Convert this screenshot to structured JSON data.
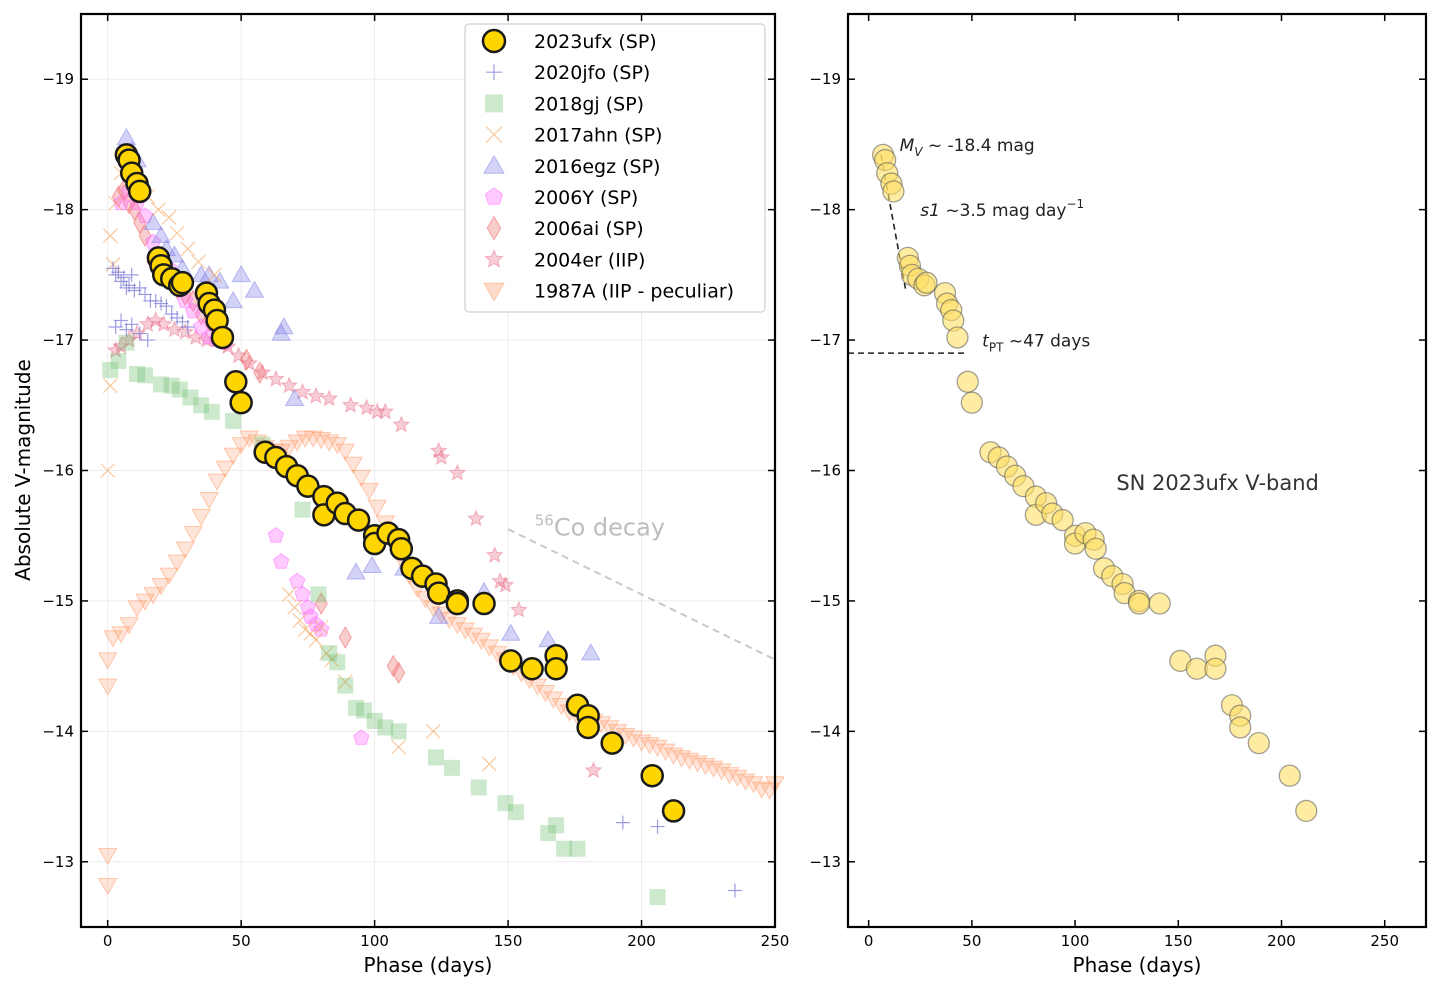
{
  "chart_data": [
    {
      "type": "scatter",
      "panel": "left",
      "xlabel": "Phase (days)",
      "ylabel": "Absolute V-magnitude",
      "xlim": [
        -10,
        250
      ],
      "ylim": [
        -19.5,
        -12.5
      ],
      "y_inverted": true,
      "grid": true,
      "xticks": [
        "0",
        "50",
        "100",
        "150",
        "200",
        "250"
      ],
      "yticks": [
        "−19",
        "−18",
        "−17",
        "−16",
        "−15",
        "−14",
        "−13"
      ],
      "legend_position": "top-right",
      "annotations": [
        {
          "text_sup": "56",
          "text": "Co decay",
          "line_from": [
            150,
            -15.55
          ],
          "line_to": [
            250,
            -14.55
          ]
        }
      ],
      "series": [
        {
          "name": "2023ufx (SP)",
          "marker": "circle",
          "color": "#FFD500",
          "edge": "#1a1a1a",
          "x": [
            7,
            8,
            9,
            11,
            12,
            19,
            20,
            21,
            24,
            27,
            28,
            37,
            38,
            40,
            41,
            43,
            48,
            50,
            59,
            63,
            67,
            71,
            75,
            81,
            81,
            86,
            89,
            94,
            100,
            100,
            105,
            109,
            110,
            114,
            118,
            123,
            124,
            131,
            131,
            141,
            151,
            159,
            168,
            168,
            176,
            180,
            180,
            189,
            204,
            212
          ],
          "y": [
            -18.42,
            -18.38,
            -18.28,
            -18.2,
            -18.14,
            -17.63,
            -17.57,
            -17.5,
            -17.47,
            -17.42,
            -17.44,
            -17.36,
            -17.28,
            -17.23,
            -17.15,
            -17.02,
            -16.68,
            -16.52,
            -16.14,
            -16.1,
            -16.03,
            -15.96,
            -15.88,
            -15.8,
            -15.66,
            -15.75,
            -15.67,
            -15.62,
            -15.5,
            -15.44,
            -15.52,
            -15.47,
            -15.4,
            -15.25,
            -15.19,
            -15.13,
            -15.06,
            -15.0,
            -14.98,
            -14.98,
            -14.54,
            -14.48,
            -14.58,
            -14.48,
            -14.2,
            -14.12,
            -14.03,
            -13.91,
            -13.66,
            -13.39
          ]
        },
        {
          "name": "2020jfo (SP)",
          "marker": "plus",
          "color": "#7b7bd6",
          "x": [
            2,
            3,
            4,
            5,
            6,
            7,
            8,
            9,
            10,
            12,
            14,
            16,
            18,
            20,
            22,
            24,
            26,
            28,
            30,
            3,
            5,
            7,
            9,
            12,
            15,
            193,
            206,
            235
          ],
          "y": [
            -17.55,
            -17.5,
            -17.52,
            -17.45,
            -17.48,
            -17.4,
            -17.42,
            -17.5,
            -17.38,
            -17.4,
            -17.35,
            -17.3,
            -17.3,
            -17.28,
            -17.26,
            -17.2,
            -17.17,
            -17.14,
            -17.1,
            -17.1,
            -17.15,
            -17.08,
            -17.12,
            -17.05,
            -17.0,
            -13.3,
            -13.27,
            -12.78
          ]
        },
        {
          "name": "2018gj (SP)",
          "marker": "square",
          "color": "#6fbf6f",
          "x": [
            1,
            4,
            7,
            11,
            14,
            20,
            24,
            27,
            31,
            35,
            39,
            47,
            58,
            73,
            79,
            83,
            86,
            89,
            93,
            96,
            100,
            104,
            109,
            123,
            129,
            139,
            149,
            153,
            165,
            168,
            171,
            176,
            206
          ],
          "y": [
            -16.77,
            -16.84,
            -16.98,
            -16.74,
            -16.73,
            -16.66,
            -16.65,
            -16.62,
            -16.56,
            -16.5,
            -16.45,
            -16.38,
            -16.2,
            -15.7,
            -15.05,
            -14.6,
            -14.53,
            -14.35,
            -14.18,
            -14.16,
            -14.08,
            -14.03,
            -14.0,
            -13.8,
            -13.72,
            -13.57,
            -13.45,
            -13.38,
            -13.22,
            -13.28,
            -13.1,
            -13.1,
            -12.73
          ]
        },
        {
          "name": "2017ahn (SP)",
          "marker": "x",
          "color": "#f3a35a",
          "x": [
            0,
            1,
            2,
            3,
            5,
            8,
            11,
            15,
            19,
            23,
            26,
            30,
            34,
            40,
            1,
            68,
            70,
            72,
            74,
            76,
            78,
            80,
            82,
            84,
            89,
            109,
            122,
            143
          ],
          "y": [
            -16.0,
            -16.65,
            -17.58,
            -18.05,
            -18.28,
            -18.22,
            -18.15,
            -18.1,
            -18.0,
            -17.94,
            -17.82,
            -17.7,
            -17.6,
            -17.5,
            -17.8,
            -15.05,
            -14.95,
            -14.85,
            -14.78,
            -14.75,
            -14.7,
            -14.8,
            -14.6,
            -14.55,
            -14.38,
            -13.88,
            -14.0,
            -13.75
          ]
        },
        {
          "name": "2016egz (SP)",
          "marker": "triangle-up",
          "color": "#8080e8",
          "x": [
            7,
            9,
            11,
            13,
            17,
            20,
            22,
            25,
            28,
            35,
            38,
            42,
            47,
            50,
            55,
            65,
            66,
            70,
            93,
            99,
            111,
            124,
            141,
            151,
            165,
            181
          ],
          "y": [
            -18.55,
            -18.45,
            -18.38,
            -18.2,
            -17.9,
            -17.8,
            -17.7,
            -17.65,
            -17.55,
            -17.5,
            -17.5,
            -17.45,
            -17.3,
            -17.5,
            -17.38,
            -17.05,
            -17.1,
            -16.55,
            -15.22,
            -15.27,
            -15.25,
            -14.88,
            -15.07,
            -14.75,
            -14.7,
            -14.6
          ]
        },
        {
          "name": "2006Y (SP)",
          "marker": "pentagon",
          "color": "#ff66ff",
          "x": [
            5,
            8,
            11,
            14,
            17,
            20,
            23,
            26,
            29,
            32,
            35,
            38,
            41,
            44,
            63,
            65,
            71,
            73,
            75,
            76,
            78,
            80,
            95
          ],
          "y": [
            -18.05,
            -18.15,
            -18.05,
            -17.95,
            -17.75,
            -17.65,
            -17.55,
            -17.45,
            -17.3,
            -17.22,
            -17.1,
            -17.02,
            -17.0,
            -16.98,
            -15.5,
            -15.3,
            -15.15,
            -15.05,
            -14.95,
            -14.88,
            -14.82,
            -14.78,
            -13.95
          ]
        },
        {
          "name": "2006ai (SP)",
          "marker": "diamond",
          "color": "#f07070",
          "x": [
            4,
            6,
            8,
            10,
            12,
            14,
            17,
            20,
            23,
            26,
            29,
            32,
            35,
            38,
            41,
            44,
            52,
            57,
            80,
            89,
            107,
            109
          ],
          "y": [
            -18.1,
            -18.15,
            -18.05,
            -18.0,
            -17.9,
            -17.8,
            -17.6,
            -17.55,
            -17.5,
            -17.4,
            -17.35,
            -17.3,
            -17.2,
            -17.15,
            -17.05,
            -17.0,
            -16.85,
            -16.75,
            -14.98,
            -14.72,
            -14.5,
            -14.45
          ]
        },
        {
          "name": "2004er (IIP)",
          "marker": "star",
          "color": "#e8708a",
          "x": [
            3,
            5,
            8,
            11,
            15,
            18,
            21,
            25,
            29,
            33,
            37,
            41,
            45,
            49,
            53,
            58,
            63,
            68,
            73,
            78,
            83,
            91,
            97,
            101,
            104,
            110,
            124,
            125,
            131,
            138,
            145,
            147,
            149,
            154,
            182
          ],
          "y": [
            -16.92,
            -16.95,
            -17.0,
            -17.05,
            -17.12,
            -17.15,
            -17.12,
            -17.08,
            -17.06,
            -17.02,
            -17.0,
            -17.0,
            -16.95,
            -16.88,
            -16.82,
            -16.75,
            -16.7,
            -16.65,
            -16.6,
            -16.57,
            -16.55,
            -16.5,
            -16.48,
            -16.45,
            -16.45,
            -16.35,
            -16.15,
            -16.1,
            -15.98,
            -15.63,
            -15.35,
            -15.15,
            -15.12,
            -14.93,
            -13.7
          ]
        }
      ],
      "series_1987A": {
        "name": "1987A (IIP - peculiar)",
        "marker": "triangle-down",
        "color": "#ff9966",
        "x": [
          0,
          0,
          0,
          0,
          2,
          5,
          8,
          11,
          14,
          17,
          20,
          23,
          26,
          29,
          32,
          35,
          38,
          41,
          44,
          47,
          50,
          53,
          56,
          59,
          62,
          65,
          68,
          71,
          74,
          77,
          80,
          83,
          86,
          89,
          92,
          95,
          98,
          101,
          104,
          107,
          110,
          113,
          116,
          119,
          122,
          125,
          128,
          131,
          134,
          137,
          140,
          143,
          146,
          149,
          152,
          155,
          158,
          161,
          164,
          167,
          170,
          173,
          176,
          179,
          182,
          185,
          188,
          191,
          194,
          197,
          200,
          203,
          206,
          209,
          212,
          215,
          218,
          221,
          224,
          227,
          230,
          233,
          236,
          239,
          242,
          245,
          248,
          250
        ],
        "y": [
          -14.35,
          -14.55,
          -13.05,
          -12.82,
          -14.72,
          -14.75,
          -14.82,
          -14.95,
          -15.0,
          -15.05,
          -15.12,
          -15.2,
          -15.3,
          -15.4,
          -15.52,
          -15.65,
          -15.78,
          -15.92,
          -16.02,
          -16.12,
          -16.2,
          -16.25,
          -16.22,
          -16.18,
          -16.15,
          -16.15,
          -16.18,
          -16.22,
          -16.25,
          -16.25,
          -16.24,
          -16.22,
          -16.2,
          -16.15,
          -16.05,
          -15.95,
          -15.85,
          -15.72,
          -15.6,
          -15.48,
          -15.32,
          -15.2,
          -15.1,
          -15.02,
          -14.95,
          -14.9,
          -14.86,
          -14.82,
          -14.78,
          -14.74,
          -14.7,
          -14.65,
          -14.6,
          -14.55,
          -14.5,
          -14.45,
          -14.4,
          -14.35,
          -14.3,
          -14.25,
          -14.2,
          -14.15,
          -14.12,
          -14.1,
          -14.08,
          -14.06,
          -14.03,
          -14.0,
          -13.97,
          -13.95,
          -13.92,
          -13.9,
          -13.88,
          -13.85,
          -13.82,
          -13.8,
          -13.78,
          -13.76,
          -13.74,
          -13.72,
          -13.7,
          -13.67,
          -13.65,
          -13.62,
          -13.6,
          -13.56,
          -13.55,
          -13.6
        ]
      }
    },
    {
      "type": "scatter",
      "panel": "right",
      "xlabel": "Phase (days)",
      "xlim": [
        -10,
        270
      ],
      "ylim": [
        -19.5,
        -12.5
      ],
      "y_inverted": true,
      "grid": false,
      "xticks": [
        "0",
        "50",
        "100",
        "150",
        "200",
        "250"
      ],
      "yticks": [
        "−19",
        "−18",
        "−17",
        "−16",
        "−15",
        "−14",
        "−13"
      ],
      "title": "SN 2023ufx V-band",
      "annotations": [
        {
          "label_var": "M",
          "label_sub": "V",
          "text": " ~  -18.4 mag",
          "at": [
            15,
            -18.45
          ]
        },
        {
          "label_var": "s1",
          "text": " ~3.5 mag day",
          "sup": "−1",
          "at": [
            25,
            -17.95
          ]
        },
        {
          "label_var": "t",
          "label_sub": "PT",
          "text": " ~47 days",
          "at": [
            55,
            -16.95
          ]
        }
      ],
      "series": [
        {
          "name": "2023ufx V-band",
          "marker": "circle",
          "color": "#FFE066",
          "edge": "#555555",
          "x": [
            7,
            8,
            9,
            11,
            12,
            19,
            20,
            21,
            24,
            27,
            28,
            37,
            38,
            40,
            41,
            43,
            48,
            50,
            59,
            63,
            67,
            71,
            75,
            81,
            81,
            86,
            89,
            94,
            100,
            100,
            105,
            109,
            110,
            114,
            118,
            123,
            124,
            131,
            131,
            141,
            151,
            159,
            168,
            168,
            176,
            180,
            180,
            189,
            204,
            212
          ],
          "y": [
            -18.42,
            -18.38,
            -18.28,
            -18.2,
            -18.14,
            -17.63,
            -17.57,
            -17.5,
            -17.47,
            -17.42,
            -17.44,
            -17.36,
            -17.28,
            -17.23,
            -17.15,
            -17.02,
            -16.68,
            -16.52,
            -16.14,
            -16.1,
            -16.03,
            -15.96,
            -15.88,
            -15.8,
            -15.66,
            -15.75,
            -15.67,
            -15.62,
            -15.5,
            -15.44,
            -15.52,
            -15.47,
            -15.4,
            -15.25,
            -15.19,
            -15.13,
            -15.06,
            -15.0,
            -14.98,
            -14.98,
            -14.54,
            -14.48,
            -14.58,
            -14.48,
            -14.2,
            -14.12,
            -14.03,
            -13.91,
            -13.66,
            -13.39
          ]
        }
      ]
    }
  ]
}
